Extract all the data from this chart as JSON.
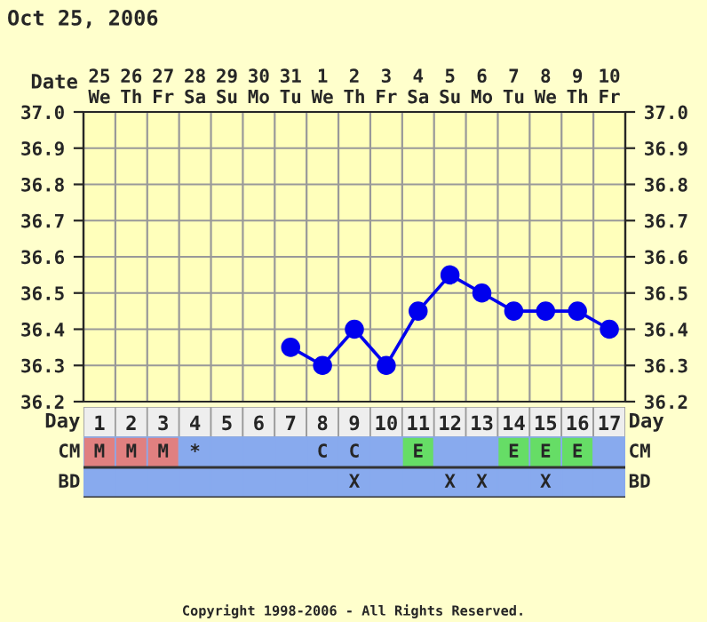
{
  "chart_data": [
    {
      "type": "line",
      "title": "Oct 25, 2006",
      "xlabel": "Date",
      "categories": [
        "25\nWe",
        "26\nTh",
        "27\nFr",
        "28\nSa",
        "29\nSu",
        "30\nMo",
        "31\nTu",
        "1\nWe",
        "2\nTh",
        "3\nFr",
        "4\nSa",
        "5\nSu",
        "6\nMo",
        "7\nTu",
        "8\nWe",
        "9\nTh",
        "10\nFr"
      ],
      "series": [
        {
          "color": "#0000ee",
          "values": [
            null,
            null,
            null,
            null,
            null,
            null,
            36.35,
            36.3,
            36.4,
            36.3,
            36.45,
            36.55,
            36.5,
            36.45,
            36.45,
            36.45,
            36.4
          ]
        }
      ],
      "ylim": [
        36.2,
        37.0
      ],
      "yticks": [
        {
          "value": 36.2,
          "label": "36.2"
        },
        {
          "value": 36.3,
          "label": "36.3"
        },
        {
          "value": 36.4,
          "label": "36.4"
        },
        {
          "value": 36.5,
          "label": "36.5"
        },
        {
          "value": 36.6,
          "label": "36.6"
        },
        {
          "value": 36.7,
          "label": "36.7"
        },
        {
          "value": 36.8,
          "label": "36.8"
        },
        {
          "value": 36.9,
          "label": "36.9"
        },
        {
          "value": 37.0,
          "label": "37.0"
        }
      ],
      "y2lim": [
        36.2,
        37.0
      ],
      "y2ticks": [
        {
          "value": 36.2,
          "label": "36.2"
        },
        {
          "value": 36.3,
          "label": "36.3"
        },
        {
          "value": 36.4,
          "label": "36.4"
        },
        {
          "value": 36.5,
          "label": "36.5"
        },
        {
          "value": 36.6,
          "label": "36.6"
        },
        {
          "value": 36.7,
          "label": "36.7"
        },
        {
          "value": 36.8,
          "label": "36.8"
        },
        {
          "value": 36.9,
          "label": "36.9"
        },
        {
          "value": 37.0,
          "label": "37.0"
        }
      ],
      "grid": true,
      "marker": "circle",
      "line_style": "solid",
      "legend": false
    },
    {
      "type": "heatmap",
      "xlabel": "Day",
      "cells": [
        [
          null,
          null,
          null,
          null,
          null,
          null,
          null,
          null,
          null,
          null,
          null,
          null,
          null,
          null,
          null,
          null,
          null
        ],
        [
          null,
          null,
          null,
          null,
          null,
          null,
          null,
          null,
          null,
          null,
          null,
          null,
          null,
          null,
          null,
          null,
          null
        ]
      ],
      "categories": [
        "1",
        "2",
        "3",
        "4",
        "5",
        "6",
        "7",
        "8",
        "9",
        "10",
        "11",
        "12",
        "13",
        "14",
        "15",
        "16",
        "17"
      ],
      "y_categories": [
        "CM",
        "BD"
      ],
      "y2_categories": [
        "CM",
        "BD"
      ],
      "cell_labels": [
        [
          "M",
          "M",
          "M",
          "*",
          null,
          null,
          null,
          "C",
          "C",
          null,
          "E",
          null,
          null,
          "E",
          "E",
          "E",
          null
        ],
        [
          null,
          null,
          null,
          null,
          null,
          null,
          null,
          null,
          "X",
          null,
          null,
          "X",
          "X",
          null,
          "X",
          null,
          null
        ]
      ],
      "colors": [
        [
          "#e08080",
          "#e08080",
          "#e08080",
          "#88aaee",
          "#88aaee",
          "#88aaee",
          "#88aaee",
          "#88aaee",
          "#88aaee",
          "#88aaee",
          "#66dd66",
          "#88aaee",
          "#88aaee",
          "#66dd66",
          "#66dd66",
          "#66dd66",
          "#88aaee"
        ],
        [
          "#88aaee",
          "#88aaee",
          "#88aaee",
          "#88aaee",
          "#88aaee",
          "#88aaee",
          "#88aaee",
          "#88aaee",
          "#88aaee",
          "#88aaee",
          "#88aaee",
          "#88aaee",
          "#88aaee",
          "#88aaee",
          "#88aaee",
          "#88aaee",
          "#88aaee"
        ]
      ],
      "annotations": [
        "Copyright 1998-2006 - All Rights Reserved."
      ]
    }
  ]
}
